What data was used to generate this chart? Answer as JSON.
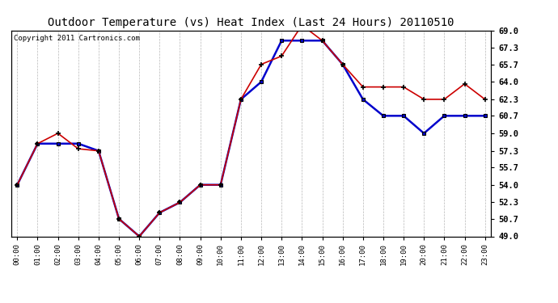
{
  "title": "Outdoor Temperature (vs) Heat Index (Last 24 Hours) 20110510",
  "copyright": "Copyright 2011 Cartronics.com",
  "ylabel_right_ticks": [
    49.0,
    50.7,
    52.3,
    54.0,
    55.7,
    57.3,
    59.0,
    60.7,
    62.3,
    64.0,
    65.7,
    67.3,
    69.0
  ],
  "ylim": [
    49.0,
    69.0
  ],
  "x_labels": [
    "00:00",
    "01:00",
    "02:00",
    "03:00",
    "04:00",
    "05:00",
    "06:00",
    "07:00",
    "08:00",
    "09:00",
    "10:00",
    "11:00",
    "12:00",
    "13:00",
    "14:00",
    "15:00",
    "16:00",
    "17:00",
    "18:00",
    "19:00",
    "20:00",
    "21:00",
    "22:00",
    "23:00"
  ],
  "temp_red": [
    54.0,
    58.0,
    59.0,
    57.5,
    57.3,
    50.7,
    49.0,
    51.3,
    52.3,
    54.0,
    54.0,
    62.3,
    65.7,
    66.5,
    69.5,
    68.0,
    65.7,
    63.5,
    63.5,
    63.5,
    62.3,
    62.3,
    63.8,
    62.3
  ],
  "heat_blue": [
    54.0,
    58.0,
    58.0,
    58.0,
    57.3,
    50.7,
    49.0,
    51.3,
    52.3,
    54.0,
    54.0,
    62.3,
    64.0,
    68.0,
    68.0,
    68.0,
    65.7,
    62.3,
    60.7,
    60.7,
    59.0,
    60.7,
    60.7,
    60.7
  ],
  "bg_color": "#ffffff",
  "plot_bg_color": "#ffffff",
  "grid_color": "#b0b0b0",
  "red_color": "#cc0000",
  "blue_color": "#0000cc",
  "title_fontsize": 10,
  "copyright_fontsize": 6.5
}
